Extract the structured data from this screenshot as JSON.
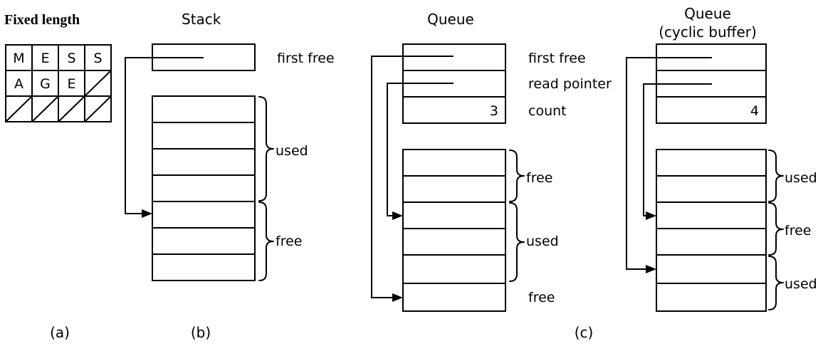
{
  "panels": {
    "a": {
      "title": "Fixed length",
      "cells": [
        "M",
        "E",
        "S",
        "S",
        "A",
        "G",
        "E"
      ],
      "part_label": "(a)"
    },
    "b": {
      "title": "Stack",
      "pointer_label": "first free",
      "used_label": "used",
      "free_label": "free",
      "part_label": "(b)"
    },
    "c_queue": {
      "title": "Queue",
      "first_free_label": "first free",
      "read_pointer_label": "read pointer",
      "count_label": "count",
      "count_value": "3",
      "free_label_top": "free",
      "used_label": "used",
      "free_label_bottom": "free"
    },
    "c_cyclic": {
      "title_line1": "Queue",
      "title_line2": "(cyclic buffer)",
      "count_value": "4",
      "used_label_top": "used",
      "free_label": "free",
      "used_label_bottom": "used"
    },
    "c": {
      "part_label": "(c)"
    }
  }
}
